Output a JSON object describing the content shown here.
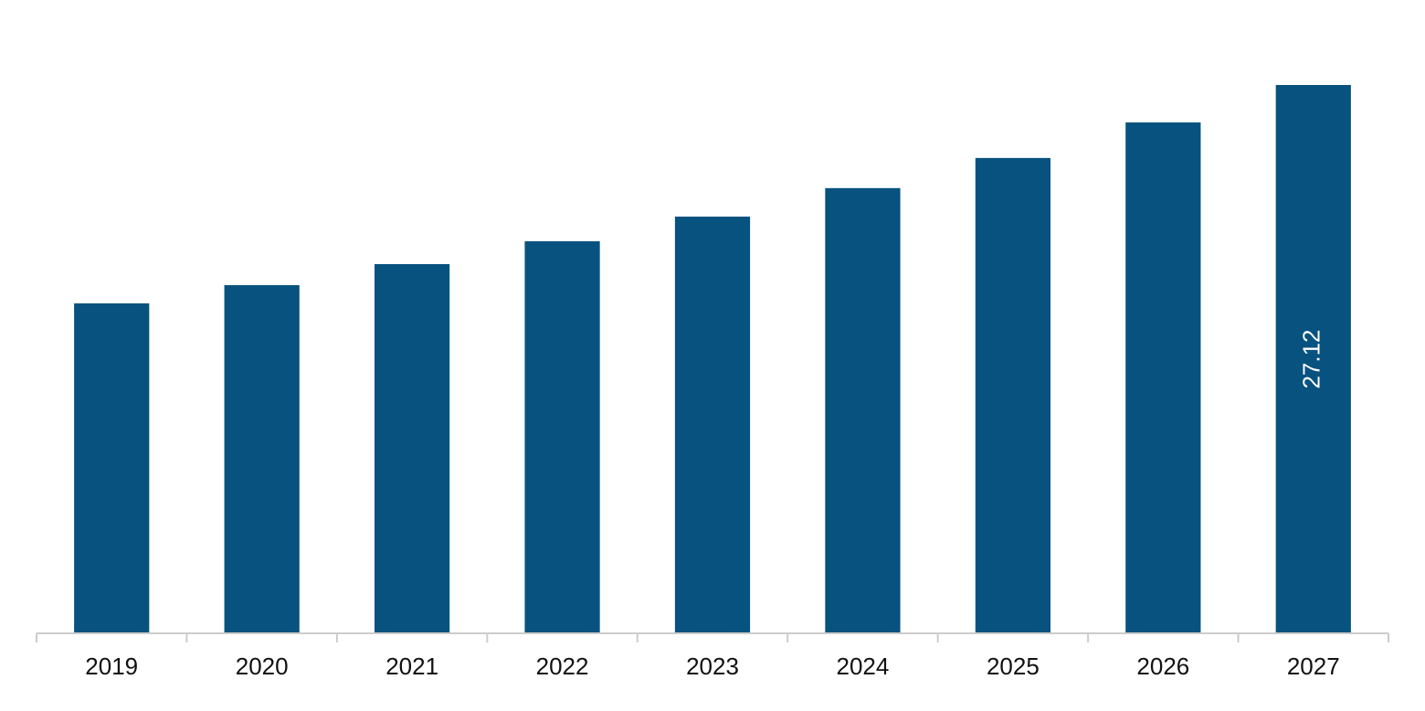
{
  "chart_data": {
    "type": "bar",
    "categories": [
      "2019",
      "2020",
      "2021",
      "2022",
      "2023",
      "2024",
      "2025",
      "2026",
      "2027"
    ],
    "values": [
      16.32,
      17.22,
      18.26,
      19.39,
      20.61,
      22.02,
      23.51,
      25.27,
      27.12
    ],
    "value_labels": [
      null,
      null,
      null,
      null,
      null,
      null,
      null,
      null,
      "27.12"
    ],
    "color": "#08527f"
  }
}
